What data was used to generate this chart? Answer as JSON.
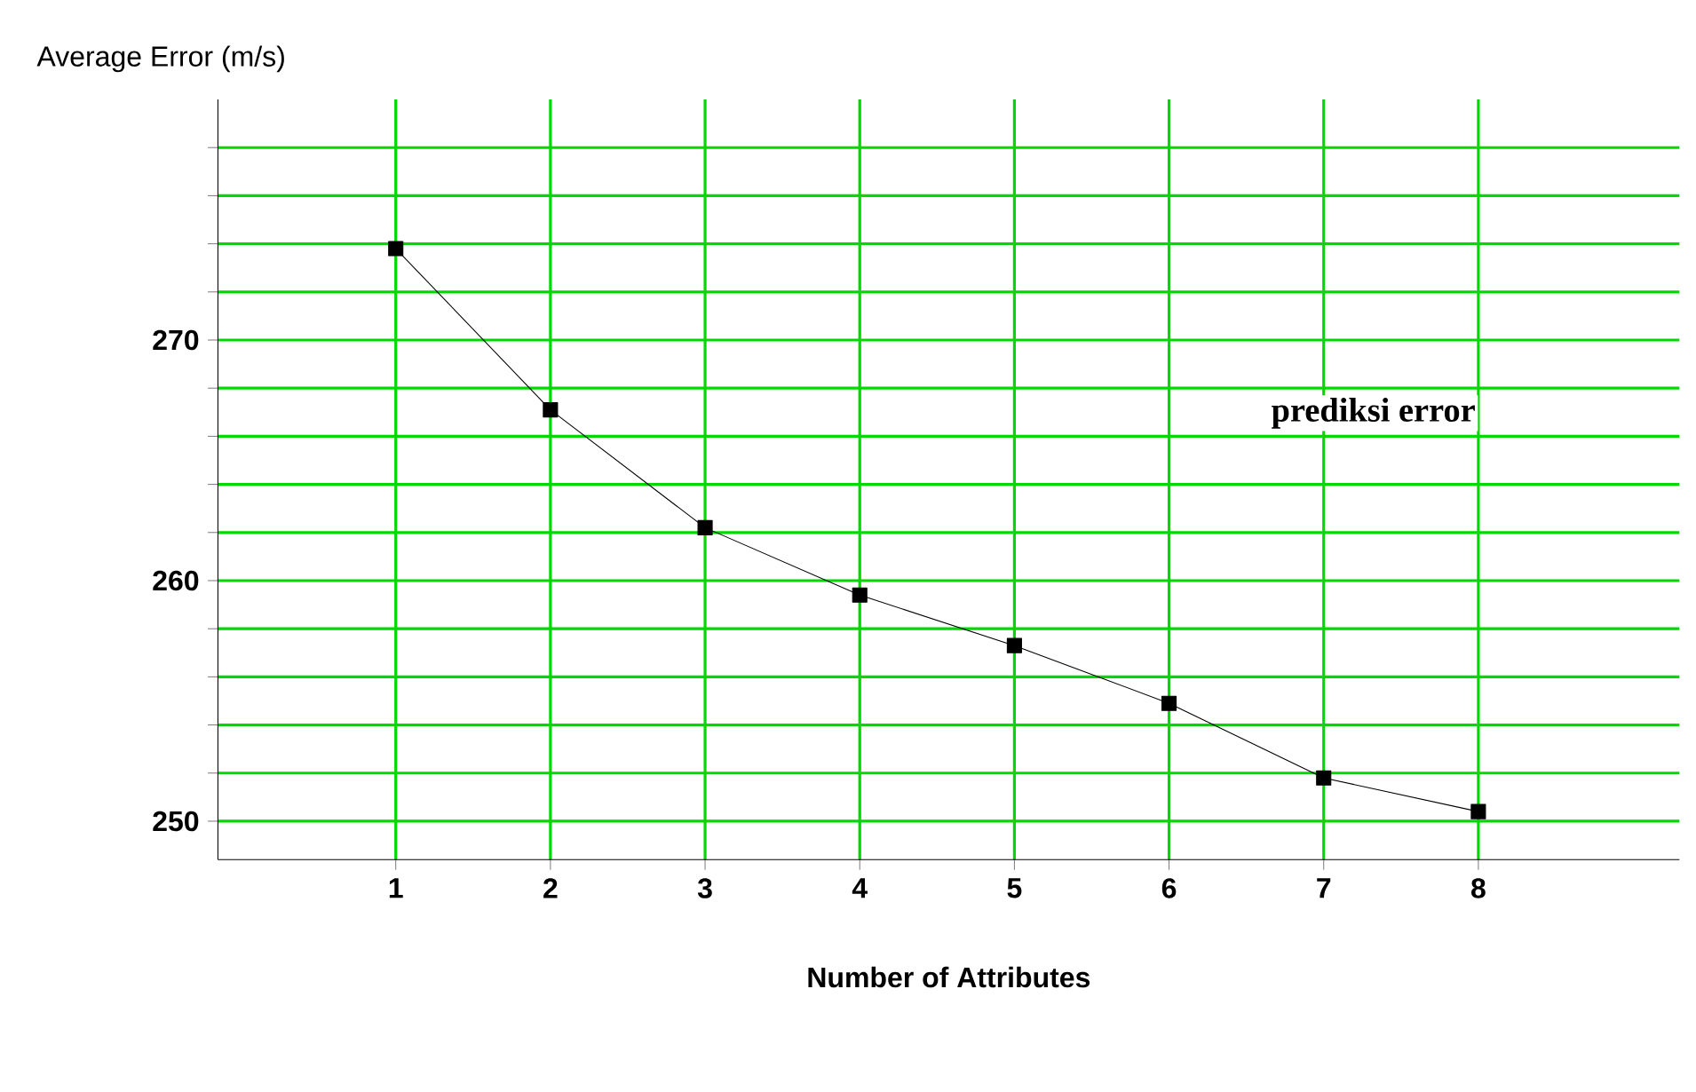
{
  "chart_data": {
    "type": "line",
    "ylabel": "Average Error (m/s)",
    "xlabel": "Number of Attributes",
    "x": [
      1,
      2,
      3,
      4,
      5,
      6,
      7,
      8
    ],
    "series": [
      {
        "name": "prediksi error",
        "color": "#000000",
        "values": [
          273.8,
          267.1,
          262.2,
          259.4,
          257.3,
          254.9,
          251.8,
          250.4
        ]
      }
    ],
    "xlim": [
      -0.15,
      9.3
    ],
    "ylim": [
      248.4,
      280
    ],
    "xticks": [
      1,
      2,
      3,
      4,
      5,
      6,
      7,
      8
    ],
    "yticks": [
      250,
      {
        "value": 252,
        "label": null
      },
      {
        "value": 254,
        "label": null
      },
      {
        "value": 256,
        "label": null
      },
      {
        "value": 258,
        "label": null
      },
      260,
      {
        "value": 262,
        "label": null
      },
      {
        "value": 264,
        "label": null
      },
      {
        "value": 266,
        "label": null
      },
      {
        "value": 268,
        "label": null
      },
      270,
      {
        "value": 272,
        "label": null
      },
      {
        "value": 274,
        "label": null
      },
      {
        "value": 276,
        "label": null
      },
      {
        "value": 278,
        "label": null
      }
    ],
    "grid": true,
    "marker": "square",
    "line_style": "solid"
  }
}
